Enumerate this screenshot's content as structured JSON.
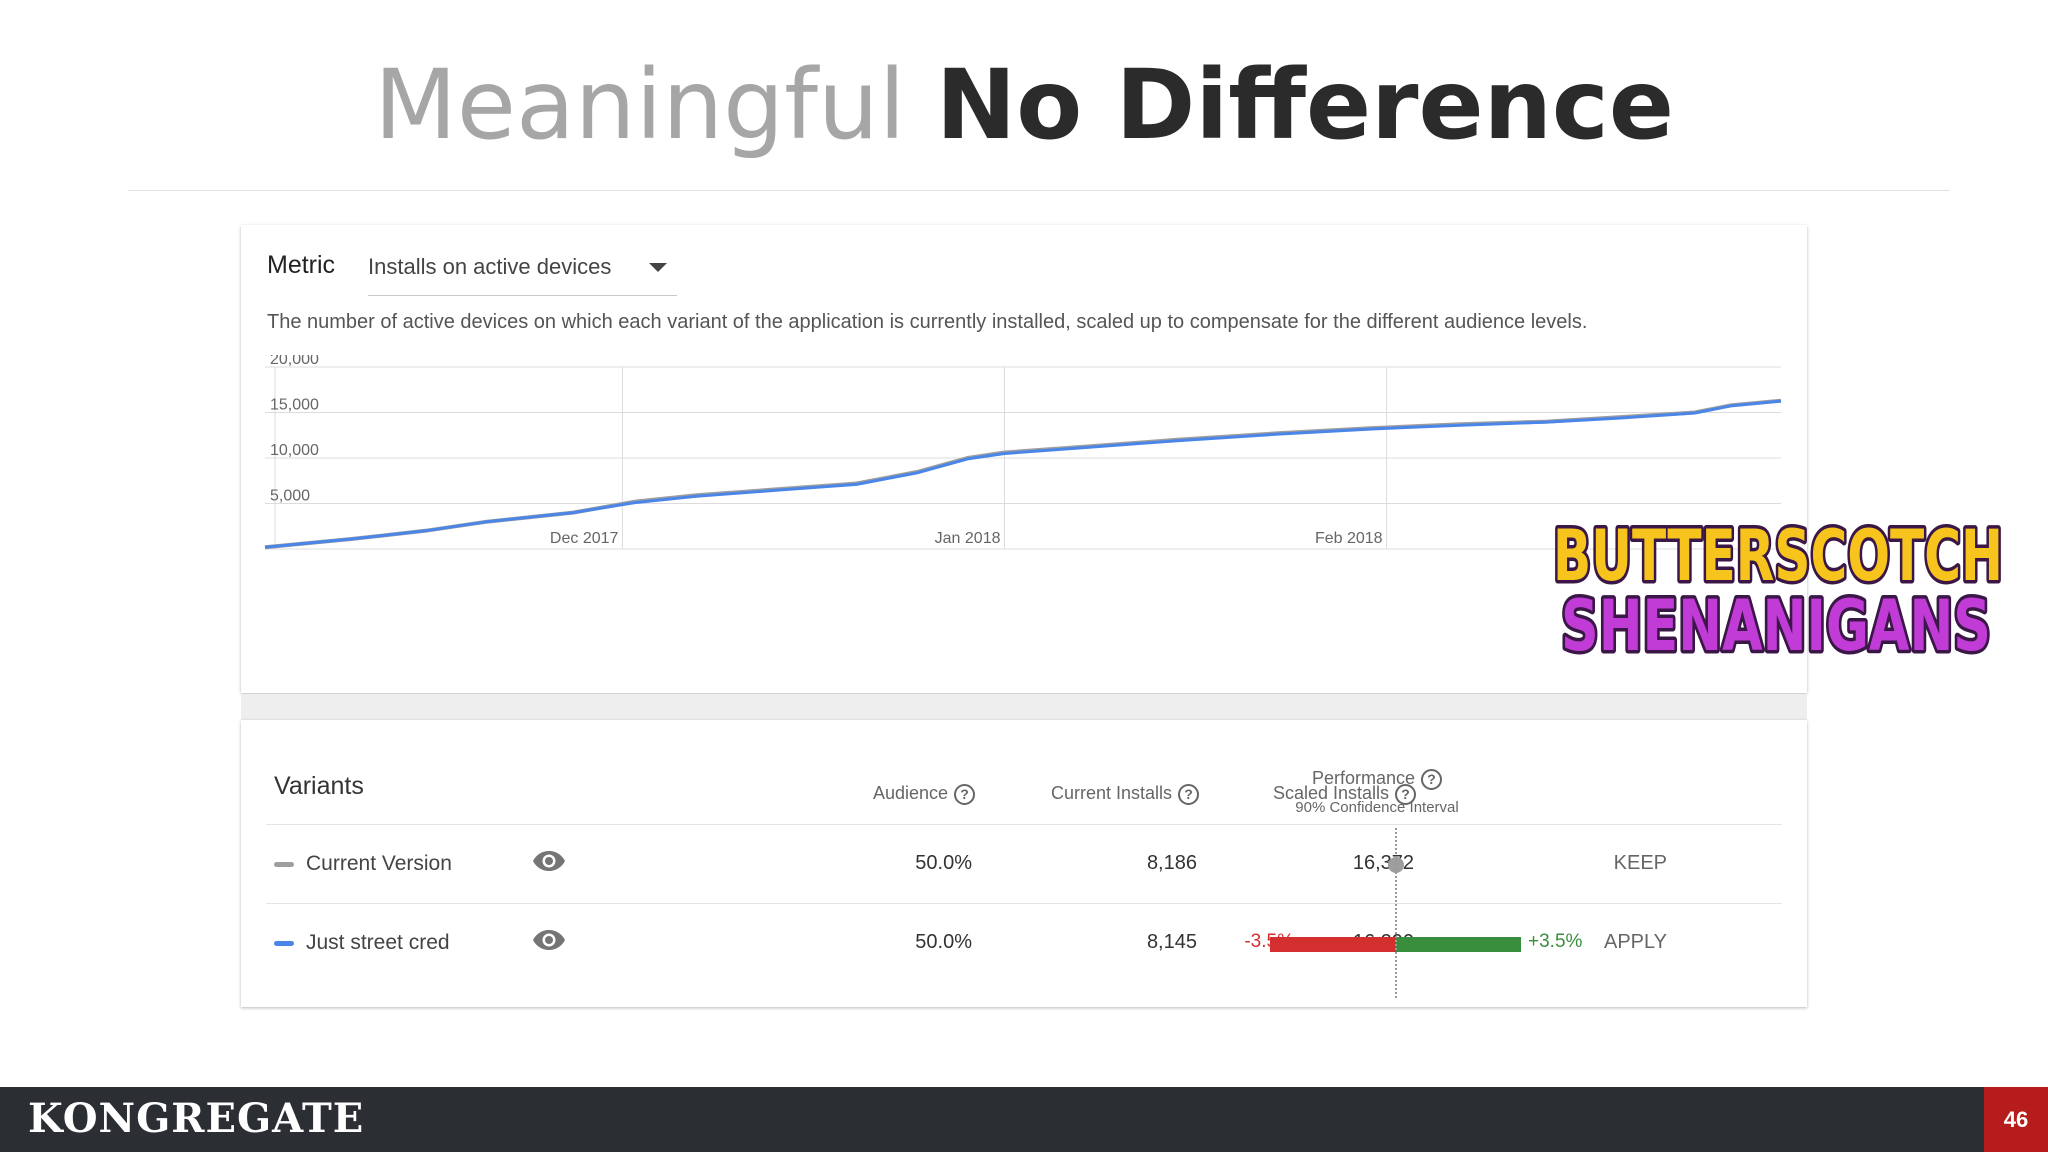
{
  "slide": {
    "title_light": "Meaningful",
    "title_bold": "No Difference",
    "page_number": "46",
    "brand": "KONGREGATE"
  },
  "logo": {
    "line1": "BUTTERSCOTCH",
    "line2": "SHENANIGANS",
    "colors": {
      "line1": "#f6c41c",
      "line2": "#c13bd6",
      "outline": "#3a1746"
    }
  },
  "metric": {
    "label": "Metric",
    "selected": "Installs on active devices",
    "description": "The number of active devices on which each variant of the application is currently installed, scaled up to compensate for the different audience levels."
  },
  "chart_data": {
    "type": "line",
    "y_ticks": [
      5000,
      10000,
      15000,
      20000
    ],
    "y_tick_labels": [
      "5,000",
      "10,000",
      "15,000",
      "20,000"
    ],
    "ylim": [
      0,
      20000
    ],
    "x_tick_labels": [
      "Dec 2017",
      "Jan 2018",
      "Feb 2018"
    ],
    "grid": true,
    "colors": {
      "current": "#9e9e9e",
      "variant": "#4a86e8"
    },
    "series": [
      {
        "x": [
          "2017-11-02",
          "2017-11-09",
          "2017-11-15",
          "2017-11-20",
          "2017-11-27",
          "2017-12-02",
          "2017-12-07",
          "2017-12-14",
          "2017-12-20",
          "2017-12-25",
          "2017-12-29",
          "2018-01-01",
          "2018-01-08",
          "2018-01-15",
          "2018-01-23",
          "2018-01-31",
          "2018-02-07",
          "2018-02-14",
          "2018-02-20",
          "2018-02-26",
          "2018-03-01",
          "2018-03-05"
        ],
        "values": [
          200,
          1100,
          2000,
          3000,
          4000,
          5200,
          5900,
          6600,
          7200,
          8500,
          10000,
          10600,
          11300,
          12000,
          12700,
          13300,
          13700,
          14000,
          14500,
          15000,
          15800,
          16300
        ]
      },
      {
        "x": [
          "2017-11-02",
          "2017-11-09",
          "2017-11-15",
          "2017-11-20",
          "2017-11-27",
          "2017-12-02",
          "2017-12-07",
          "2017-12-14",
          "2017-12-20",
          "2017-12-25",
          "2017-12-29",
          "2018-01-01",
          "2018-01-08",
          "2018-01-15",
          "2018-01-23",
          "2018-01-31",
          "2018-02-07",
          "2018-02-14",
          "2018-02-20",
          "2018-02-26",
          "2018-03-01",
          "2018-03-05"
        ],
        "values": [
          200,
          1100,
          2000,
          3000,
          4000,
          5100,
          5800,
          6500,
          7100,
          8400,
          9900,
          10500,
          11200,
          11900,
          12600,
          13200,
          13600,
          13950,
          14400,
          14950,
          15750,
          16250
        ]
      }
    ]
  },
  "variants": {
    "title": "Variants",
    "columns": {
      "audience": "Audience",
      "current_installs": "Current Installs",
      "scaled_installs": "Scaled Installs",
      "performance": "Performance",
      "performance_sub": "90% Confidence Interval"
    },
    "help_glyph": "?",
    "rows": [
      {
        "name": "Current Version",
        "color": "#9e9e9e",
        "audience": "50.0%",
        "current_installs": "8,186",
        "scaled_installs": "16,372",
        "action": "KEEP"
      },
      {
        "name": "Just street cred",
        "color": "#4a86e8",
        "audience": "50.0%",
        "current_installs": "8,145",
        "scaled_installs": "16,290",
        "ci_low": "-3.5%",
        "ci_high": "+3.5%",
        "action": "APPLY"
      }
    ]
  }
}
